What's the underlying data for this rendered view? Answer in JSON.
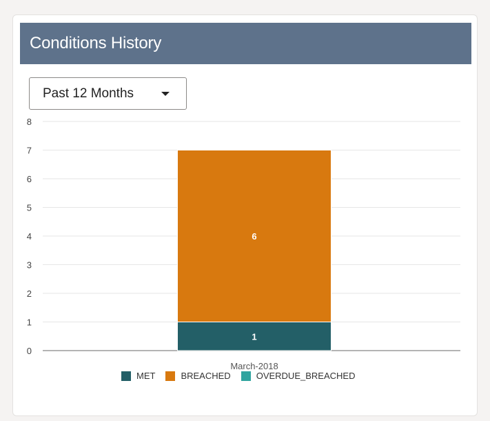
{
  "header": {
    "title": "Conditions History"
  },
  "filter": {
    "selected": "Past 12 Months"
  },
  "chart_data": {
    "type": "bar",
    "stacked": true,
    "categories": [
      "March-2018"
    ],
    "series": [
      {
        "name": "MET",
        "values": [
          1
        ],
        "color": "#235f67"
      },
      {
        "name": "BREACHED",
        "values": [
          6
        ],
        "color": "#d8790f"
      },
      {
        "name": "OVERDUE_BREACHED",
        "values": [
          0
        ],
        "color": "#30a49f"
      }
    ],
    "ylim": [
      0,
      8
    ],
    "yticks": [
      0,
      1,
      2,
      3,
      4,
      5,
      6,
      7,
      8
    ],
    "grid": true,
    "legend": "bottom"
  }
}
